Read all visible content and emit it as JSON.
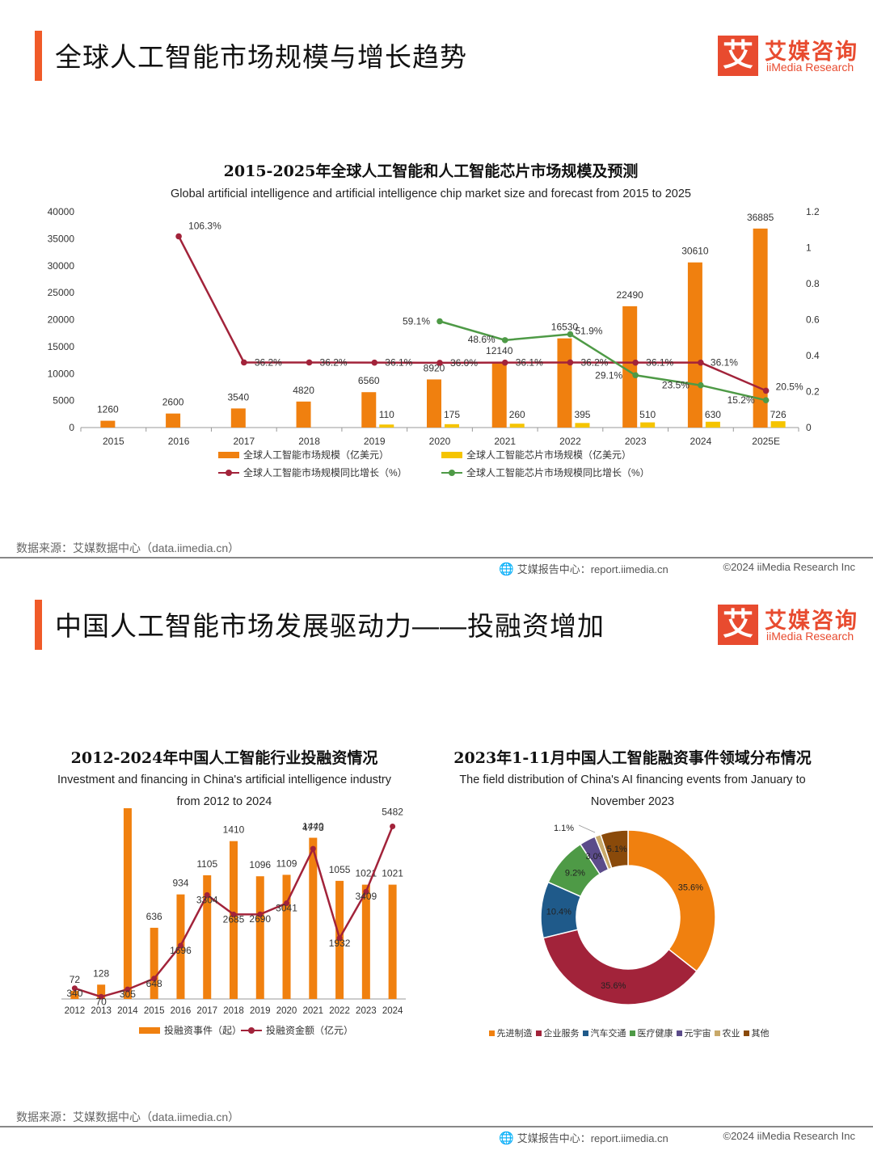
{
  "panel1": {
    "title": "全球人工智能市场规模与增长趋势",
    "logo": {
      "cn": "艾媒咨询",
      "en": "iiMedia Research",
      "mark": "艾"
    },
    "source": "数据来源：艾媒数据中心（data.iimedia.cn）",
    "footer_left": "艾媒报告中心：report.iimedia.cn",
    "footer_right": "©2024  iiMedia Research  Inc"
  },
  "panel2": {
    "title": "中国人工智能市场发展驱动力——投融资增加",
    "logo": {
      "cn": "艾媒咨询",
      "en": "iiMedia Research",
      "mark": "艾"
    },
    "source": "数据来源：艾媒数据中心（data.iimedia.cn）",
    "footer_left": "艾媒报告中心：report.iimedia.cn",
    "footer_right": "©2024  iiMedia Research  Inc"
  },
  "chart_data": [
    {
      "type": "bar",
      "title": "2015-2025年全球人工智能和人工智能芯片市场规模及预测",
      "subtitle": "Global artificial intelligence and artificial intelligence chip market size and forecast from 2015 to 2025",
      "categories": [
        "2015",
        "2016",
        "2017",
        "2018",
        "2019",
        "2020",
        "2021",
        "2022",
        "2023",
        "2024",
        "2025E"
      ],
      "ylim": [
        0,
        40000
      ],
      "yticks": [
        0,
        5000,
        10000,
        15000,
        20000,
        25000,
        30000,
        35000,
        40000
      ],
      "y2lim": [
        0,
        1.2
      ],
      "y2ticks": [
        0,
        0.2,
        0.4,
        0.6,
        0.8,
        1,
        1.2
      ],
      "y2tick_labels": [
        "0",
        "0.2",
        "0.4",
        "0.6",
        "0.8",
        "1",
        "1.2"
      ],
      "grid": false,
      "legend_position": "bottom",
      "colors": {
        "ai_bar": "#f0800f",
        "chip_bar": "#f5c400",
        "ai_line": "#a2233a",
        "chip_line": "#4e9a46"
      },
      "series": [
        {
          "name": "全球人工智能市场规模（亿美元）",
          "type": "bar",
          "axis": "left",
          "values": [
            1260,
            2600,
            3540,
            4820,
            6560,
            8920,
            12140,
            16530,
            22490,
            30610,
            36885
          ]
        },
        {
          "name": "全球人工智能芯片市场规模（亿美元）",
          "type": "bar",
          "axis": "left",
          "values": [
            null,
            null,
            null,
            null,
            110,
            175,
            260,
            395,
            510,
            630,
            726
          ]
        },
        {
          "name": "全球人工智能市场规模同比增长（%）",
          "type": "line",
          "axis": "right",
          "values": [
            null,
            1.063,
            0.362,
            0.362,
            0.361,
            0.36,
            0.361,
            0.362,
            0.361,
            0.361,
            0.205
          ],
          "labels": [
            null,
            "106.3%",
            "36.2%",
            "36.2%",
            "36.1%",
            "36.0%",
            "36.1%",
            "36.2%",
            "36.1%",
            "36.1%",
            "20.5%"
          ]
        },
        {
          "name": "全球人工智能芯片市场规模同比增长（%）",
          "type": "line",
          "axis": "right",
          "values": [
            null,
            null,
            null,
            null,
            null,
            0.591,
            0.486,
            0.519,
            0.291,
            0.235,
            0.152
          ],
          "labels": [
            null,
            null,
            null,
            null,
            null,
            "59.1%",
            "48.6%",
            "51.9%",
            "29.1%",
            "23.5%",
            "15.2%"
          ]
        }
      ]
    },
    {
      "type": "bar",
      "title": "2012-2024年中国人工智能行业投融资情况",
      "subtitle": "Investment and financing in China's artificial intelligence industry from 2012 to 2024",
      "categories": [
        "2012",
        "2013",
        "2014",
        "2015",
        "2016",
        "2017",
        "2018",
        "2019",
        "2020",
        "2021",
        "2022",
        "2023",
        "2024"
      ],
      "colors": {
        "bar": "#f0800f",
        "line": "#a2233a"
      },
      "legend_position": "bottom",
      "series": [
        {
          "name": "投融资事件（起）",
          "type": "bar",
          "values": [
            72,
            128,
            1904,
            636,
            934,
            1105,
            1410,
            1096,
            1109,
            1440,
            1055,
            1021,
            1021
          ]
        },
        {
          "name": "投融资金额（亿元）",
          "type": "line",
          "values": [
            340,
            70,
            305,
            648,
            1696,
            3304,
            2685,
            2690,
            3041,
            4773,
            1932,
            3409,
            5482
          ]
        }
      ]
    },
    {
      "type": "pie",
      "title": "2023年1-11月中国人工智能融资事件领域分布情况",
      "subtitle": "The field distribution of China's AI financing events from January to November 2023",
      "legend_position": "bottom",
      "slices": [
        {
          "name": "先进制造",
          "value": 35.6,
          "label": "35.6%",
          "color": "#f0800f"
        },
        {
          "name": "企业服务",
          "value": 35.6,
          "label": "35.6%",
          "color": "#a2233a"
        },
        {
          "name": "汽车交通",
          "value": 10.4,
          "label": "10.4%",
          "color": "#1f5a8a"
        },
        {
          "name": "医疗健康",
          "value": 9.2,
          "label": "9.2%",
          "color": "#4e9a46"
        },
        {
          "name": "元宇宙",
          "value": 3.0,
          "label": "3.0%",
          "color": "#5b4b8a"
        },
        {
          "name": "农业",
          "value": 1.1,
          "label": "1.1%",
          "color": "#c8a96a"
        },
        {
          "name": "其他",
          "value": 5.1,
          "label": "5.1%",
          "color": "#8a4a0a"
        }
      ]
    }
  ]
}
